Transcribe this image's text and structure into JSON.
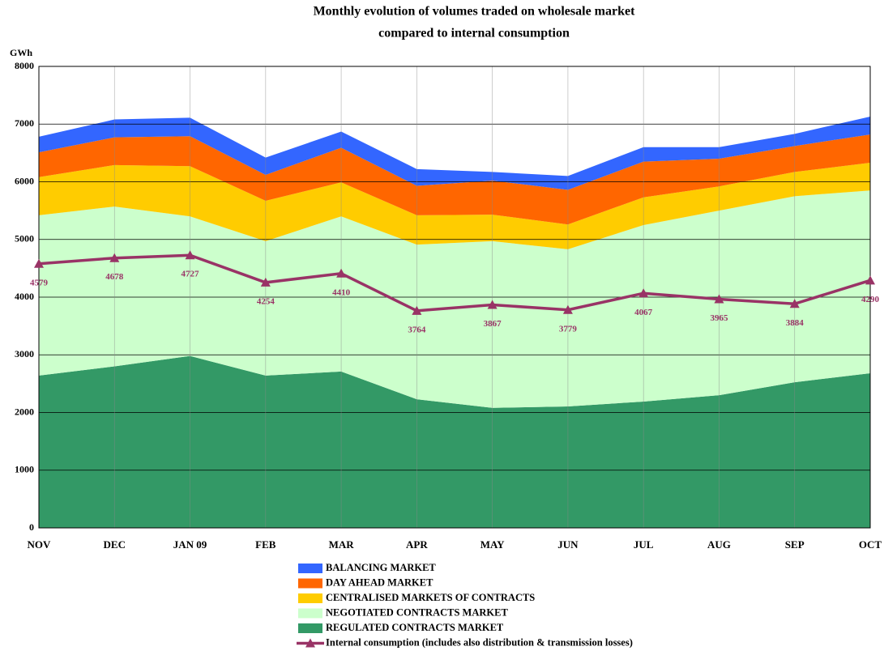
{
  "chart_data": {
    "type": "area",
    "title": [
      "Monthly evolution of volumes traded on wholesale market",
      "compared to internal consumption"
    ],
    "y_label": "GWh",
    "categories": [
      "NOV",
      "DEC",
      "JAN 09",
      "FEB",
      "MAR",
      "APR",
      "MAY",
      "JUN",
      "JUL",
      "AUG",
      "SEP",
      "OCT"
    ],
    "ylim": [
      0,
      8000
    ],
    "yticks": [
      0,
      1000,
      2000,
      3000,
      4000,
      5000,
      6000,
      7000,
      8000
    ],
    "grid": true,
    "stacked": true,
    "series": [
      {
        "name": "REGULATED CONTRACTS MARKET",
        "type": "area",
        "color": "#339966",
        "values": [
          2640,
          2800,
          2980,
          2640,
          2710,
          2230,
          2080,
          2105,
          2190,
          2300,
          2525,
          2680
        ]
      },
      {
        "name": "NEGOTIATED CONTRACTS MARKET",
        "type": "area",
        "color": "#ccffcc",
        "values": [
          2780,
          2770,
          2420,
          2330,
          2690,
          2680,
          2890,
          2725,
          3060,
          3200,
          3225,
          3170
        ]
      },
      {
        "name": "CENTRALISED MARKETS OF CONTRACTS",
        "type": "area",
        "color": "#ffcc00",
        "values": [
          660,
          720,
          870,
          700,
          590,
          510,
          460,
          430,
          480,
          420,
          420,
          480
        ]
      },
      {
        "name": "DAY AHEAD MARKET",
        "type": "area",
        "color": "#ff6600",
        "values": [
          430,
          480,
          520,
          450,
          600,
          510,
          590,
          600,
          620,
          480,
          450,
          490
        ]
      },
      {
        "name": "BALANCING MARKET",
        "type": "area",
        "color": "#3366ff",
        "values": [
          270,
          310,
          320,
          300,
          280,
          290,
          150,
          240,
          250,
          200,
          210,
          310
        ]
      },
      {
        "name": "Internal consumption (includes also distribution & transmission losses)",
        "type": "line",
        "color": "#993366",
        "values": [
          4579,
          4678,
          4727,
          4254,
          4410,
          3764,
          3867,
          3779,
          4067,
          3965,
          3884,
          4290
        ]
      }
    ]
  }
}
